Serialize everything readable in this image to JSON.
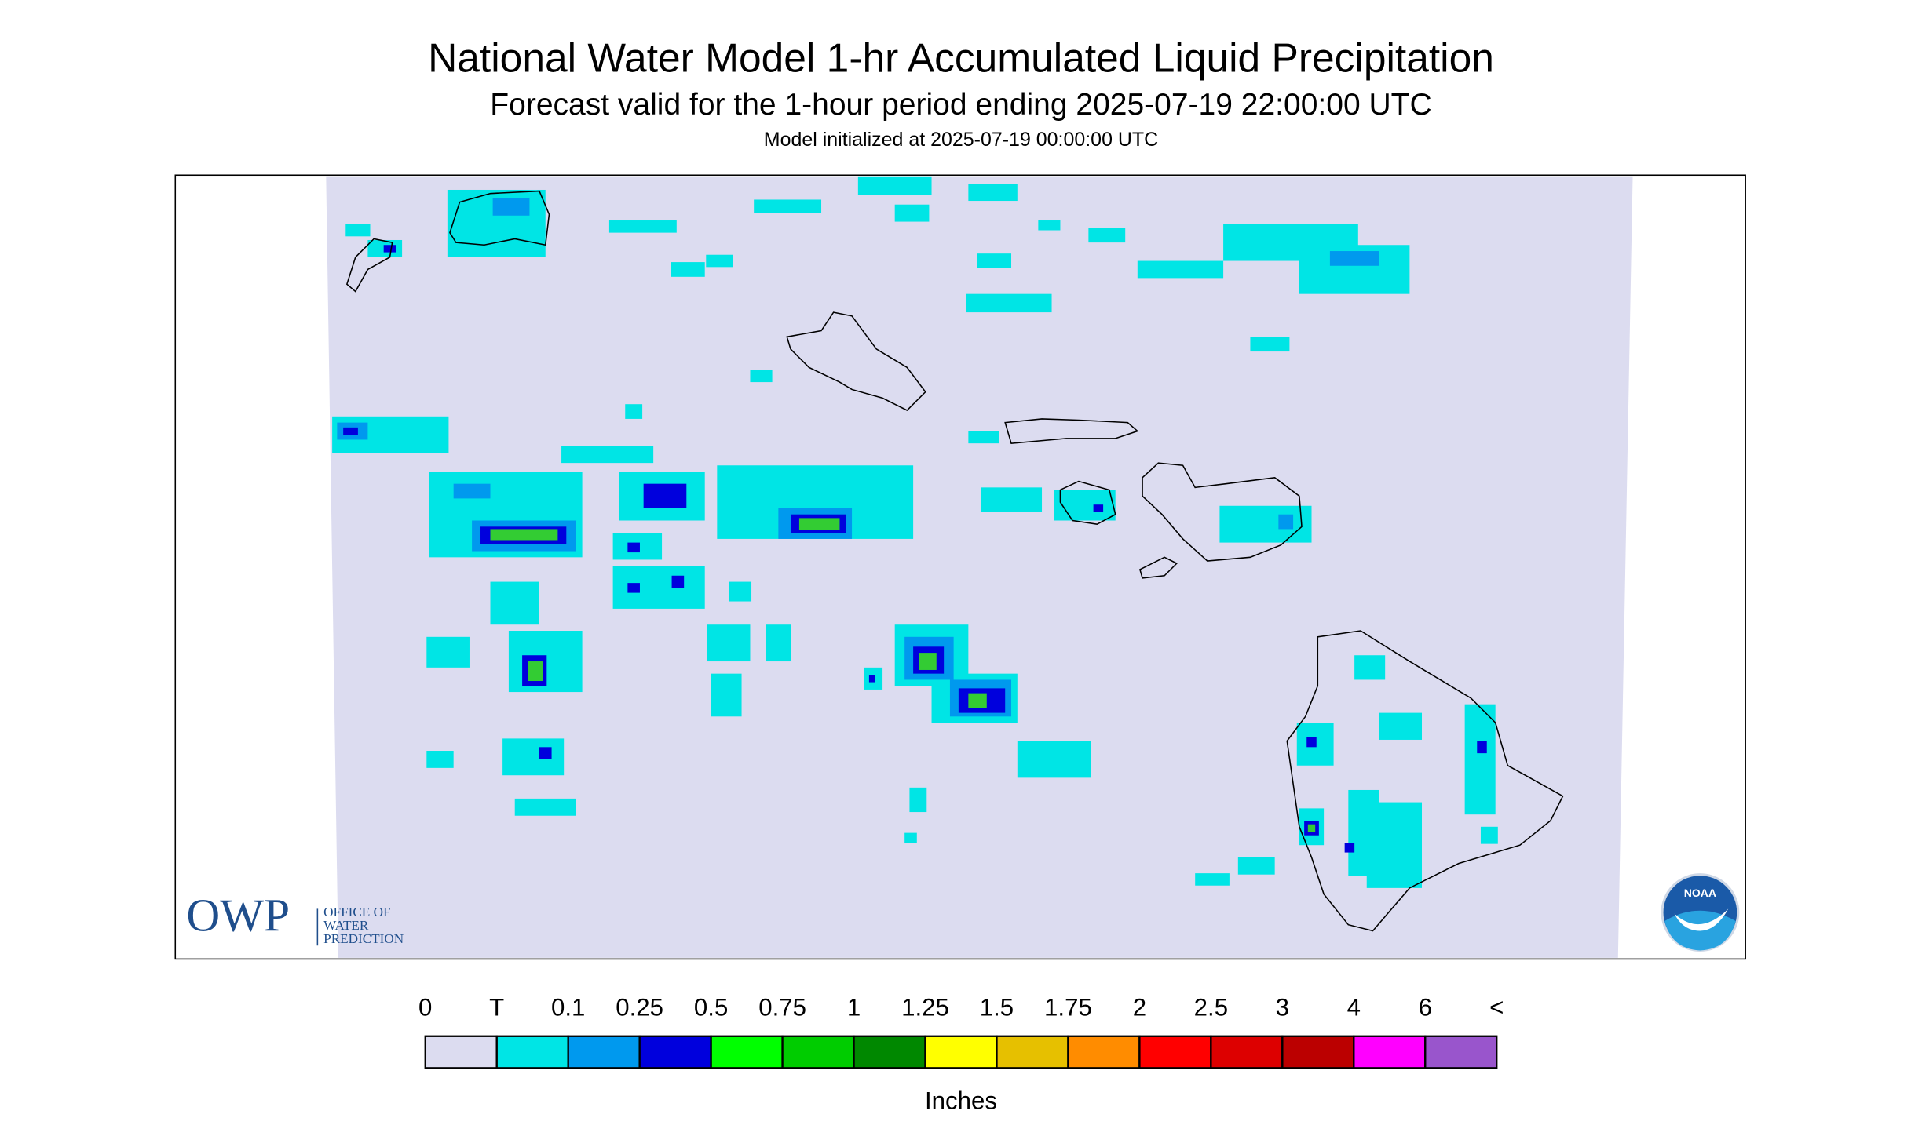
{
  "header": {
    "title": "National Water Model 1-hr Accumulated Liquid Precipitation",
    "subtitle": "Forecast valid for the 1-hour period ending 2025-07-19 22:00:00 UTC",
    "note": "Model initialized at 2025-07-19 00:00:00 UTC"
  },
  "legend": {
    "labels": [
      "0",
      "T",
      "0.1",
      "0.25",
      "0.5",
      "0.75",
      "1",
      "1.25",
      "1.5",
      "1.75",
      "2",
      "2.5",
      "3",
      "4",
      "6",
      "<"
    ],
    "colors": [
      "#dcdcf0",
      "#00e5e5",
      "#0099ee",
      "#0000dd",
      "#00ff00",
      "#00cc00",
      "#008800",
      "#ffff00",
      "#e6c000",
      "#ff8c00",
      "#ff0000",
      "#dd0000",
      "#bb0000",
      "#ff00ff",
      "#9955cc"
    ],
    "unit": "Inches"
  },
  "logos": {
    "owp": "OWP",
    "owp_text": [
      "OFFICE OF",
      "WATER",
      "PREDICTION"
    ],
    "noaa": "NOAA"
  }
}
